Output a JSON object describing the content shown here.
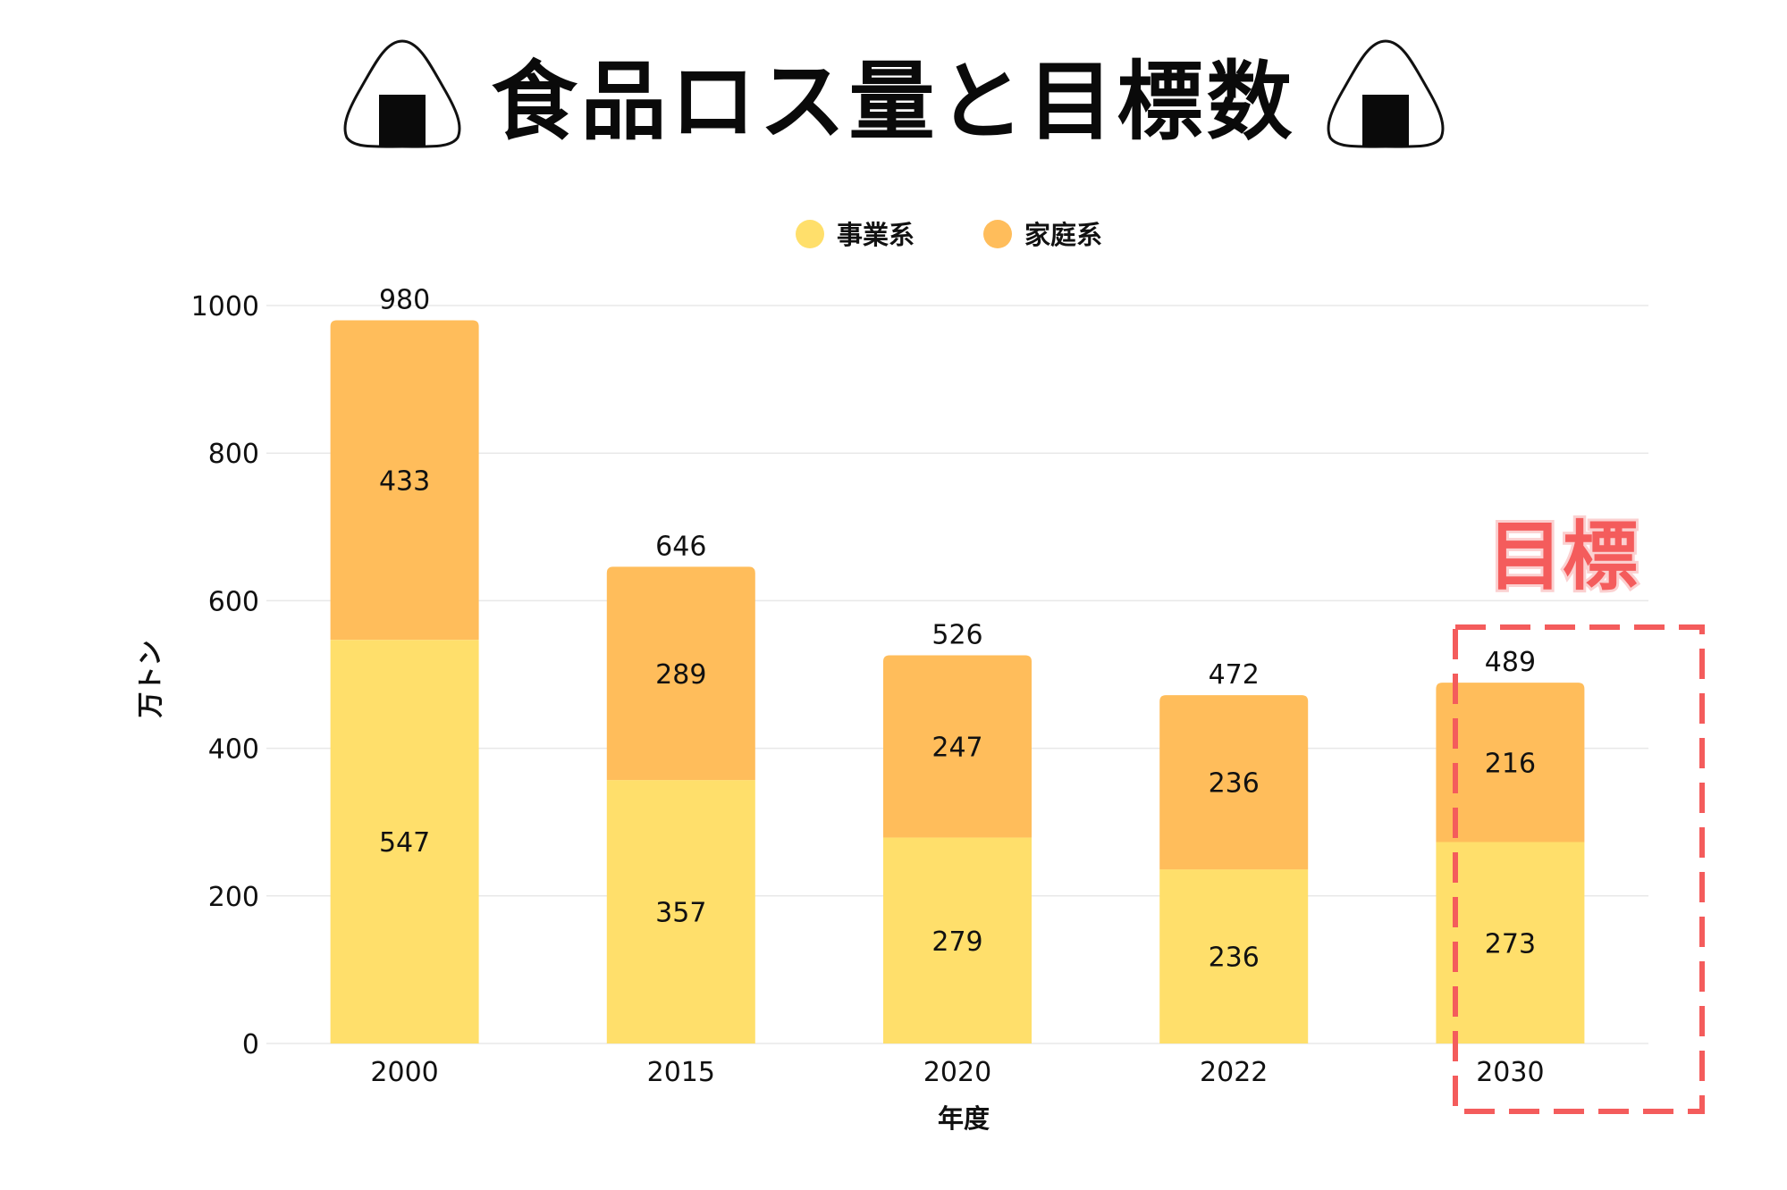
{
  "title": "食品ロス量と目標数",
  "icons": {
    "decoration": "onigiri-icon"
  },
  "target_label": "目標",
  "colors": {
    "business": "#ffdf6b",
    "household": "#ffbd5b",
    "target_box": "#f45c5c",
    "grid": "#e8e8e8"
  },
  "chart_data": {
    "type": "bar",
    "stacked": true,
    "categories": [
      "2000",
      "2015",
      "2020",
      "2022",
      "2030"
    ],
    "series": [
      {
        "name": "事業系",
        "values": [
          547,
          357,
          279,
          236,
          273
        ]
      },
      {
        "name": "家庭系",
        "values": [
          433,
          289,
          247,
          236,
          216
        ]
      }
    ],
    "totals": [
      980,
      646,
      526,
      472,
      489
    ],
    "xlabel": "年度",
    "ylabel": "万トン",
    "ylim": [
      0,
      1000
    ],
    "yticks": [
      0,
      200,
      400,
      600,
      800,
      1000
    ],
    "grid": true,
    "legend_position": "top-center",
    "highlighted_category": "2030"
  }
}
